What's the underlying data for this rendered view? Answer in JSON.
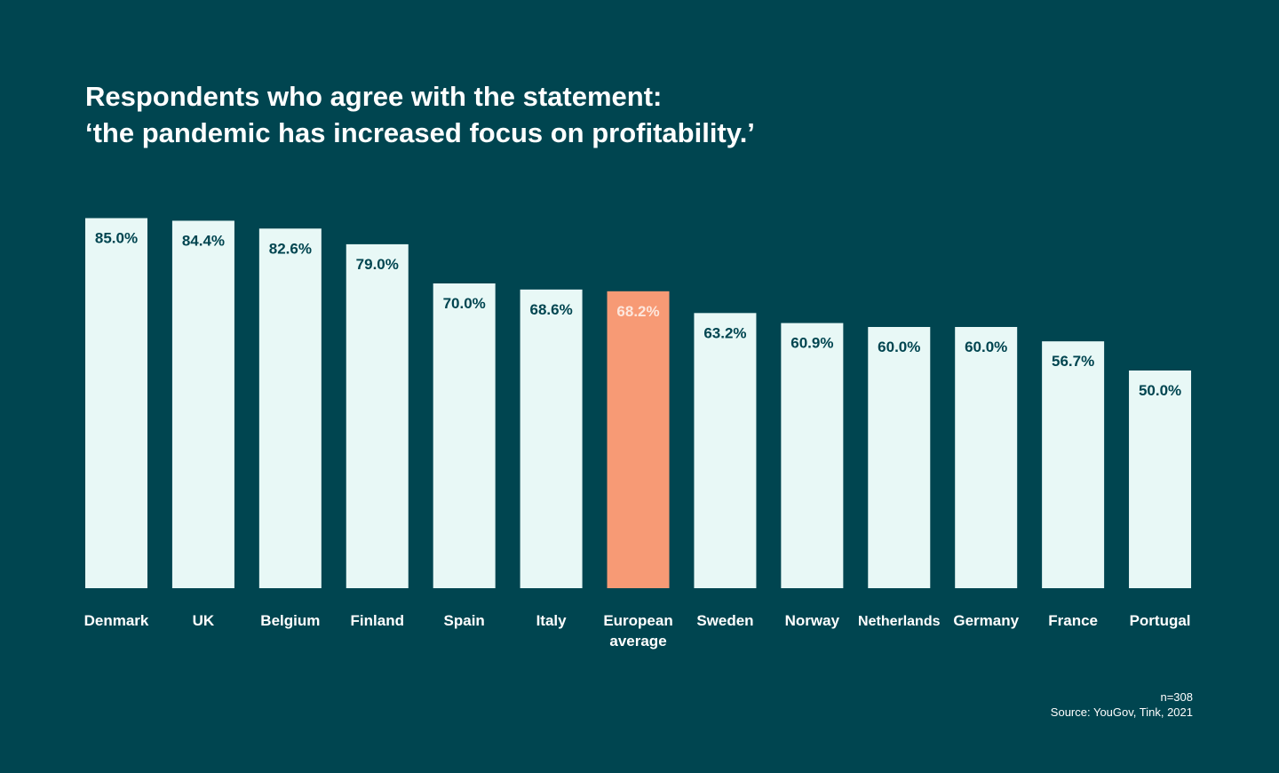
{
  "title_lines": [
    "Respondents who agree with the statement:",
    "‘the pandemic has increased focus on profitability.’"
  ],
  "footnote": {
    "sample": "n=308",
    "source": "Source: YouGov, Tink, 2021"
  },
  "colors": {
    "background": "#004550",
    "bar": "#e8f8f6",
    "highlight_bar": "#f79a75",
    "value_label": "#004550",
    "highlight_value_label": "#fde6dc",
    "text": "#ffffff"
  },
  "chart_data": {
    "type": "bar",
    "title": "Respondents who agree with the statement: ‘the pandemic has increased focus on profitability.’",
    "categories": [
      "Denmark",
      "UK",
      "Belgium",
      "Finland",
      "Spain",
      "Italy",
      "European average",
      "Sweden",
      "Norway",
      "Netherlands",
      "Germany",
      "France",
      "Portugal"
    ],
    "values": [
      85.0,
      84.4,
      82.6,
      79.0,
      70.0,
      68.6,
      68.2,
      63.2,
      60.9,
      60.0,
      60.0,
      56.7,
      50.0
    ],
    "value_labels": [
      "85.0%",
      "84.4%",
      "82.6%",
      "79.0%",
      "70.0%",
      "68.6%",
      "68.2%",
      "63.2%",
      "60.9%",
      "60.0%",
      "60.0%",
      "56.7%",
      "50.0%"
    ],
    "highlight_category": "European average",
    "ylim": [
      0,
      100
    ],
    "xlabel": "",
    "ylabel": "",
    "grid": false,
    "legend": false
  }
}
